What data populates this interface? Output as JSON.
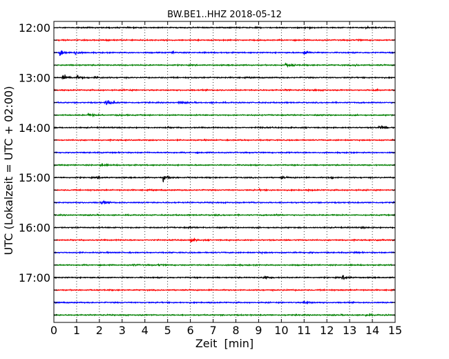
{
  "chart_data": {
    "type": "line",
    "subtype": "dayplot-seismogram",
    "title": "BW.BE1..HHZ 2018-05-12",
    "xlabel": "Zeit  [min]",
    "ylabel": "UTC (Lokalzeit = UTC + 02:00)",
    "xlim": [
      0,
      15
    ],
    "x_ticks": [
      0,
      1,
      2,
      3,
      4,
      5,
      6,
      7,
      8,
      9,
      10,
      11,
      12,
      13,
      14,
      15
    ],
    "x_tick_labels": [
      "0",
      "1",
      "2",
      "3",
      "4",
      "5",
      "6",
      "7",
      "8",
      "9",
      "10",
      "11",
      "12",
      "13",
      "14",
      "15"
    ],
    "y_tick_labels": [
      "12:00",
      "13:00",
      "14:00",
      "15:00",
      "16:00",
      "17:00"
    ],
    "vertical_grid": "dotted, every 1 min",
    "trace_interval_min": 15,
    "colors": [
      "#000000",
      "#ff0000",
      "#0000ff",
      "#008000"
    ],
    "series": [
      {
        "start": "12:00",
        "events": [
          {
            "x": 11.0,
            "amp": 0.22
          },
          {
            "x": 13.7,
            "amp": 0.18
          }
        ]
      },
      {
        "start": "12:15",
        "events": [
          {
            "x": 2.3,
            "amp": 0.08
          },
          {
            "x": 13.3,
            "amp": 0.1
          }
        ]
      },
      {
        "start": "12:30",
        "events": [
          {
            "x": 0.25,
            "amp": 1.0
          },
          {
            "x": 0.9,
            "amp": 0.4
          },
          {
            "x": 5.2,
            "amp": 0.15
          },
          {
            "x": 11.0,
            "amp": 0.55
          }
        ]
      },
      {
        "start": "12:45",
        "events": [
          {
            "x": 10.2,
            "amp": 0.55
          },
          {
            "x": 13.2,
            "amp": 0.15
          }
        ]
      },
      {
        "start": "13:00",
        "events": [
          {
            "x": 0.4,
            "amp": 0.85
          },
          {
            "x": 1.0,
            "amp": 0.5
          },
          {
            "x": 1.8,
            "amp": 0.25
          }
        ]
      },
      {
        "start": "13:15",
        "events": [
          {
            "x": 3.1,
            "amp": 0.12
          },
          {
            "x": 10.2,
            "amp": 0.1
          },
          {
            "x": 11.4,
            "amp": 0.12
          },
          {
            "x": 14.0,
            "amp": 0.25
          }
        ]
      },
      {
        "start": "13:30",
        "events": [
          {
            "x": 2.3,
            "amp": 0.85
          },
          {
            "x": 5.5,
            "amp": 0.3
          },
          {
            "x": 6.9,
            "amp": 0.1
          }
        ]
      },
      {
        "start": "13:45",
        "events": [
          {
            "x": 1.5,
            "amp": 0.4
          },
          {
            "x": 2.7,
            "amp": 0.3
          }
        ]
      },
      {
        "start": "14:00",
        "events": [
          {
            "x": 4.9,
            "amp": 0.12
          },
          {
            "x": 9.0,
            "amp": 0.12
          },
          {
            "x": 14.3,
            "amp": 0.6
          }
        ]
      },
      {
        "start": "14:15",
        "events": [
          {
            "x": 8.1,
            "amp": 0.08
          }
        ]
      },
      {
        "start": "14:30",
        "events": [
          {
            "x": 10.2,
            "amp": 0.08
          }
        ]
      },
      {
        "start": "14:45",
        "events": [
          {
            "x": 2.0,
            "amp": 0.25
          }
        ]
      },
      {
        "start": "15:00",
        "events": [
          {
            "x": 1.9,
            "amp": 0.2
          },
          {
            "x": 4.8,
            "amp": 0.85
          },
          {
            "x": 10.0,
            "amp": 0.2
          },
          {
            "x": 12.1,
            "amp": 0.25
          }
        ]
      },
      {
        "start": "15:15",
        "events": [
          {
            "x": 9.0,
            "amp": 0.1
          },
          {
            "x": 11.2,
            "amp": 0.1
          }
        ]
      },
      {
        "start": "15:30",
        "events": [
          {
            "x": 2.1,
            "amp": 0.4
          },
          {
            "x": 8.7,
            "amp": 0.08
          }
        ]
      },
      {
        "start": "15:45",
        "events": [
          {
            "x": 7.0,
            "amp": 0.1
          },
          {
            "x": 9.8,
            "amp": 0.1
          }
        ]
      },
      {
        "start": "16:00",
        "events": [
          {
            "x": 5.9,
            "amp": 0.12
          },
          {
            "x": 13.5,
            "amp": 0.1
          }
        ]
      },
      {
        "start": "16:15",
        "events": [
          {
            "x": 6.0,
            "amp": 0.45
          },
          {
            "x": 10.7,
            "amp": 0.1
          },
          {
            "x": 14.2,
            "amp": 0.1
          }
        ]
      },
      {
        "start": "16:30",
        "events": [
          {
            "x": 9.0,
            "amp": 0.1
          },
          {
            "x": 11.2,
            "amp": 0.1
          },
          {
            "x": 13.2,
            "amp": 0.1
          }
        ]
      },
      {
        "start": "16:45",
        "events": [
          {
            "x": 3.5,
            "amp": 0.15
          },
          {
            "x": 4.6,
            "amp": 0.15
          },
          {
            "x": 7.9,
            "amp": 0.08
          }
        ]
      },
      {
        "start": "17:00",
        "events": [
          {
            "x": 9.2,
            "amp": 0.3
          },
          {
            "x": 12.7,
            "amp": 0.5
          }
        ]
      },
      {
        "start": "17:15",
        "events": [
          {
            "x": 10.1,
            "amp": 0.08
          }
        ]
      },
      {
        "start": "17:30",
        "events": [
          {
            "x": 11.0,
            "amp": 0.4
          }
        ]
      },
      {
        "start": "17:45",
        "events": [
          {
            "x": 13.7,
            "amp": 0.2
          }
        ]
      }
    ]
  }
}
